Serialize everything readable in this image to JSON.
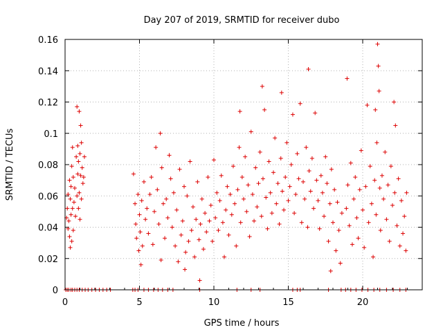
{
  "chart_data": {
    "type": "scatter",
    "title": "Day 207 of 2019, SRMTID for receiver dubo",
    "xlabel": "GPS time / hours",
    "ylabel": "SRMTID / TECUs",
    "xlim": [
      0,
      24
    ],
    "ylim": [
      0,
      0.16
    ],
    "xticks": [
      0,
      5,
      10,
      15,
      20
    ],
    "yticks": [
      0,
      0.02,
      0.04,
      0.06,
      0.08,
      0.1,
      0.12,
      0.14,
      0.16
    ],
    "xtick_labels": [
      "0",
      "5",
      "10",
      "15",
      "20"
    ],
    "ytick_labels": [
      "0",
      "0.02",
      "0.04",
      "0.06",
      "0.08",
      "0.1",
      "0.12",
      "0.14",
      "0.16"
    ],
    "grid": true,
    "marker": "+",
    "color": "#dd0000",
    "series": [
      {
        "name": "SRMTID",
        "points": [
          [
            0.1,
            0.046
          ],
          [
            0.15,
            0.052
          ],
          [
            0.2,
            0.039
          ],
          [
            0.2,
            0.061
          ],
          [
            0.25,
            0.044
          ],
          [
            0.3,
            0.07
          ],
          [
            0.3,
            0.034
          ],
          [
            0.35,
            0.058
          ],
          [
            0.35,
            0.027
          ],
          [
            0.4,
            0.066
          ],
          [
            0.4,
            0.048
          ],
          [
            0.45,
            0.031
          ],
          [
            0.45,
            0.079
          ],
          [
            0.5,
            0.052
          ],
          [
            0.5,
            0.091
          ],
          [
            0.55,
            0.072
          ],
          [
            0.55,
            0.038
          ],
          [
            0.6,
            0.056
          ],
          [
            0.65,
            0.065
          ],
          [
            0.7,
            0.047
          ],
          [
            0.75,
            0.085
          ],
          [
            0.8,
            0.06
          ],
          [
            0.8,
            0.117
          ],
          [
            0.85,
            0.074
          ],
          [
            0.85,
            0.092
          ],
          [
            0.9,
            0.052
          ],
          [
            0.9,
            0.082
          ],
          [
            0.95,
            0.062
          ],
          [
            0.95,
            0.114
          ],
          [
            1.0,
            0.087
          ],
          [
            1.0,
            0.045
          ],
          [
            1.05,
            0.105
          ],
          [
            1.05,
            0.073
          ],
          [
            1.1,
            0.094
          ],
          [
            1.1,
            0.058
          ],
          [
            1.15,
            0.078
          ],
          [
            1.2,
            0.068
          ],
          [
            1.25,
            0.072
          ],
          [
            1.3,
            0.085
          ],
          [
            4.6,
            0.074
          ],
          [
            4.7,
            0.055
          ],
          [
            4.75,
            0.042
          ],
          [
            4.8,
            0.033
          ],
          [
            4.9,
            0.061
          ],
          [
            4.95,
            0.025
          ],
          [
            5.0,
            0.048
          ],
          [
            5.05,
            0.037
          ],
          [
            5.1,
            0.016
          ],
          [
            5.15,
            0.057
          ],
          [
            5.2,
            0.028
          ],
          [
            5.3,
            0.069
          ],
          [
            5.4,
            0.045
          ],
          [
            5.5,
            0.052
          ],
          [
            5.6,
            0.036
          ],
          [
            5.7,
            0.061
          ],
          [
            5.8,
            0.072
          ],
          [
            5.9,
            0.029
          ],
          [
            6.0,
            0.05
          ],
          [
            6.1,
            0.091
          ],
          [
            6.2,
            0.064
          ],
          [
            6.3,
            0.042
          ],
          [
            6.4,
            0.1
          ],
          [
            6.45,
            0.019
          ],
          [
            6.5,
            0.078
          ],
          [
            6.6,
            0.055
          ],
          [
            6.7,
            0.033
          ],
          [
            6.8,
            0.058
          ],
          [
            6.9,
            0.046
          ],
          [
            7.0,
            0.086
          ],
          [
            7.1,
            0.071
          ],
          [
            7.2,
            0.04
          ],
          [
            7.3,
            0.062
          ],
          [
            7.4,
            0.028
          ],
          [
            7.5,
            0.051
          ],
          [
            7.6,
            0.018
          ],
          [
            7.7,
            0.077
          ],
          [
            7.8,
            0.035
          ],
          [
            7.9,
            0.044
          ],
          [
            8.0,
            0.066
          ],
          [
            8.05,
            0.013
          ],
          [
            8.1,
            0.024
          ],
          [
            8.2,
            0.06
          ],
          [
            8.3,
            0.031
          ],
          [
            8.4,
            0.082
          ],
          [
            8.5,
            0.038
          ],
          [
            8.6,
            0.053
          ],
          [
            8.7,
            0.021
          ],
          [
            8.8,
            0.045
          ],
          [
            8.9,
            0.069
          ],
          [
            9.0,
            0.032
          ],
          [
            9.05,
            0.006
          ],
          [
            9.1,
            0.042
          ],
          [
            9.2,
            0.058
          ],
          [
            9.3,
            0.026
          ],
          [
            9.4,
            0.049
          ],
          [
            9.5,
            0.037
          ],
          [
            9.6,
            0.072
          ],
          [
            9.7,
            0.044
          ],
          [
            9.8,
            0.054
          ],
          [
            9.9,
            0.031
          ],
          [
            10.0,
            0.083
          ],
          [
            10.1,
            0.046
          ],
          [
            10.2,
            0.062
          ],
          [
            10.3,
            0.038
          ],
          [
            10.4,
            0.057
          ],
          [
            10.5,
            0.073
          ],
          [
            10.6,
            0.043
          ],
          [
            10.7,
            0.021
          ],
          [
            10.8,
            0.051
          ],
          [
            10.9,
            0.066
          ],
          [
            11.0,
            0.035
          ],
          [
            11.1,
            0.061
          ],
          [
            11.2,
            0.048
          ],
          [
            11.3,
            0.079
          ],
          [
            11.4,
            0.055
          ],
          [
            11.5,
            0.028
          ],
          [
            11.6,
            0.064
          ],
          [
            11.7,
            0.091
          ],
          [
            11.75,
            0.114
          ],
          [
            11.8,
            0.043
          ],
          [
            11.9,
            0.072
          ],
          [
            12.0,
            0.058
          ],
          [
            12.1,
            0.085
          ],
          [
            12.2,
            0.05
          ],
          [
            12.3,
            0.067
          ],
          [
            12.4,
            0.034
          ],
          [
            12.5,
            0.101
          ],
          [
            12.6,
            0.061
          ],
          [
            12.7,
            0.044
          ],
          [
            12.8,
            0.078
          ],
          [
            12.9,
            0.053
          ],
          [
            13.0,
            0.068
          ],
          [
            13.1,
            0.088
          ],
          [
            13.2,
            0.047
          ],
          [
            13.25,
            0.13
          ],
          [
            13.3,
            0.071
          ],
          [
            13.4,
            0.115
          ],
          [
            13.5,
            0.059
          ],
          [
            13.6,
            0.039
          ],
          [
            13.7,
            0.082
          ],
          [
            13.8,
            0.062
          ],
          [
            13.9,
            0.049
          ],
          [
            14.0,
            0.075
          ],
          [
            14.1,
            0.097
          ],
          [
            14.2,
            0.055
          ],
          [
            14.3,
            0.068
          ],
          [
            14.4,
            0.042
          ],
          [
            14.5,
            0.084
          ],
          [
            14.55,
            0.126
          ],
          [
            14.6,
            0.063
          ],
          [
            14.7,
            0.051
          ],
          [
            14.8,
            0.072
          ],
          [
            14.9,
            0.094
          ],
          [
            15.0,
            0.057
          ],
          [
            15.1,
            0.066
          ],
          [
            15.2,
            0.08
          ],
          [
            15.3,
            0.112
          ],
          [
            15.4,
            0.049
          ],
          [
            15.5,
            0.061
          ],
          [
            15.6,
            0.087
          ],
          [
            15.7,
            0.071
          ],
          [
            15.8,
            0.119
          ],
          [
            15.9,
            0.043
          ],
          [
            16.0,
            0.069
          ],
          [
            16.1,
            0.058
          ],
          [
            16.2,
            0.091
          ],
          [
            16.3,
            0.04
          ],
          [
            16.35,
            0.141
          ],
          [
            16.4,
            0.076
          ],
          [
            16.5,
            0.063
          ],
          [
            16.6,
            0.084
          ],
          [
            16.7,
            0.052
          ],
          [
            16.8,
            0.113
          ],
          [
            16.9,
            0.07
          ],
          [
            17.0,
            0.057
          ],
          [
            17.1,
            0.039
          ],
          [
            17.2,
            0.073
          ],
          [
            17.3,
            0.062
          ],
          [
            17.4,
            0.047
          ],
          [
            17.5,
            0.085
          ],
          [
            17.6,
            0.068
          ],
          [
            17.7,
            0.031
          ],
          [
            17.8,
            0.055
          ],
          [
            17.85,
            0.012
          ],
          [
            17.9,
            0.077
          ],
          [
            18.0,
            0.043
          ],
          [
            18.1,
            0.064
          ],
          [
            18.2,
            0.025
          ],
          [
            18.3,
            0.056
          ],
          [
            18.4,
            0.038
          ],
          [
            18.5,
            0.017
          ],
          [
            18.6,
            0.049
          ],
          [
            18.9,
            0.052
          ],
          [
            18.95,
            0.135
          ],
          [
            19.0,
            0.067
          ],
          [
            19.1,
            0.041
          ],
          [
            19.2,
            0.081
          ],
          [
            19.3,
            0.029
          ],
          [
            19.4,
            0.058
          ],
          [
            19.5,
            0.072
          ],
          [
            19.6,
            0.046
          ],
          [
            19.7,
            0.033
          ],
          [
            19.8,
            0.064
          ],
          [
            19.9,
            0.089
          ],
          [
            20.0,
            0.051
          ],
          [
            20.1,
            0.027
          ],
          [
            20.2,
            0.066
          ],
          [
            20.3,
            0.118
          ],
          [
            20.4,
            0.043
          ],
          [
            20.5,
            0.079
          ],
          [
            20.6,
            0.055
          ],
          [
            20.7,
            0.021
          ],
          [
            20.8,
            0.07
          ],
          [
            20.85,
            0.115
          ],
          [
            20.9,
            0.048
          ],
          [
            20.95,
            0.094
          ],
          [
            21.0,
            0.157
          ],
          [
            21.05,
            0.143
          ],
          [
            21.1,
            0.127
          ],
          [
            21.15,
            0.065
          ],
          [
            21.2,
            0.038
          ],
          [
            21.3,
            0.073
          ],
          [
            21.4,
            0.058
          ],
          [
            21.5,
            0.088
          ],
          [
            21.6,
            0.045
          ],
          [
            21.7,
            0.067
          ],
          [
            21.8,
            0.031
          ],
          [
            21.9,
            0.079
          ],
          [
            22.0,
            0.054
          ],
          [
            22.1,
            0.12
          ],
          [
            22.15,
            0.062
          ],
          [
            22.2,
            0.105
          ],
          [
            22.3,
            0.041
          ],
          [
            22.4,
            0.071
          ],
          [
            22.5,
            0.028
          ],
          [
            22.6,
            0.057
          ],
          [
            22.7,
            0.036
          ],
          [
            22.8,
            0.047
          ],
          [
            22.9,
            0.025
          ],
          [
            22.95,
            0.062
          ]
        ]
      }
    ],
    "zero_points_x": [
      0.05,
      0.15,
      0.25,
      0.4,
      0.5,
      0.65,
      0.8,
      0.95,
      1.15,
      1.35,
      1.55,
      1.8,
      2.05,
      2.3,
      2.55,
      2.8,
      3.05,
      4.55,
      4.7,
      4.9,
      5.3,
      5.6,
      5.95,
      6.25,
      6.55,
      6.9,
      7.25,
      9.05,
      11.55,
      12.5,
      13.1,
      15.3,
      15.6,
      15.8,
      17.7,
      18.55,
      18.85,
      19.2,
      19.55,
      19.95,
      20.35,
      20.75,
      21.15,
      21.6,
      22.05,
      22.5,
      22.9
    ]
  }
}
